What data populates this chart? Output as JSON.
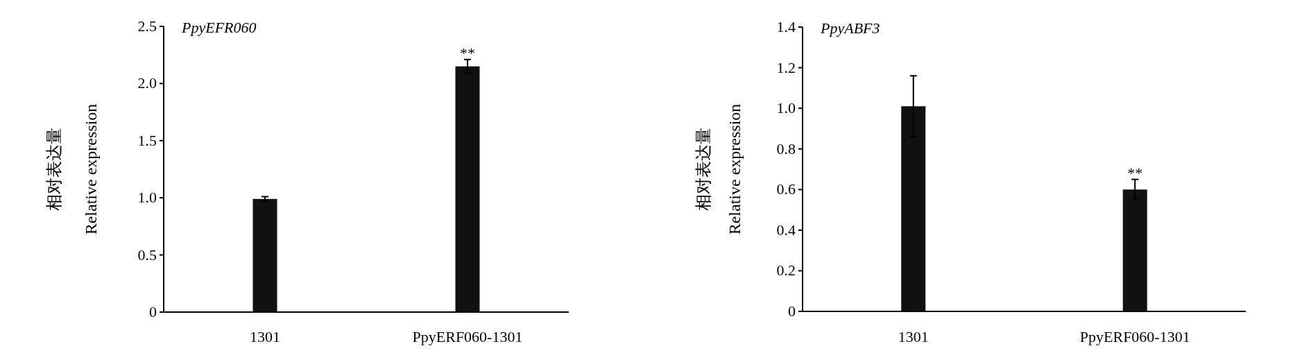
{
  "chart_data": [
    {
      "type": "bar",
      "title": "PpyEFR060",
      "ylabel": "相对表达量\nRelative expression",
      "categories": [
        "1301",
        "PpyERF060-1301"
      ],
      "values": [
        0.99,
        2.15
      ],
      "errors": [
        0.02,
        0.06
      ],
      "color": "#111111",
      "ylim": [
        0,
        2.5
      ],
      "yticks": [
        {
          "value": 0,
          "label": "0"
        },
        0.5,
        {
          "value": 1,
          "label": "1.0"
        },
        1.5,
        {
          "value": 2,
          "label": "2.0"
        },
        2.5
      ],
      "annotations": [
        {
          "text": "**",
          "x": "PpyERF060-1301",
          "y": 2.21
        }
      ]
    },
    {
      "type": "bar",
      "title": "PpyABF3",
      "ylabel": "相对表达量\nRelative expression",
      "categories": [
        "1301",
        "PpyERF060-1301"
      ],
      "values": [
        1.01,
        0.6
      ],
      "errors": [
        0.15,
        0.05
      ],
      "color": "#111111",
      "ylim": [
        0,
        1.4
      ],
      "yticks": [
        0,
        0.2,
        0.4,
        0.6,
        0.8,
        {
          "value": 1,
          "label": "1.0"
        },
        1.2,
        1.4
      ],
      "annotations": [
        {
          "text": "**",
          "x": "PpyERF060-1301",
          "y": 0.65
        }
      ]
    }
  ]
}
